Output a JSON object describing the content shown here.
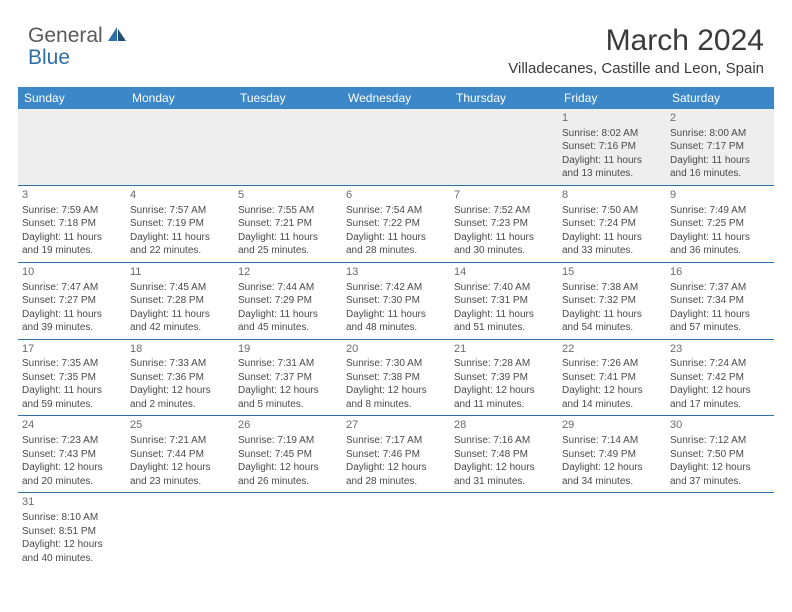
{
  "logo": {
    "text1": "General",
    "text2": "Blue"
  },
  "title": "March 2024",
  "location": "Villadecanes, Castille and Leon, Spain",
  "colors": {
    "header_bg": "#3b87c8",
    "header_text": "#ffffff",
    "rule": "#2f6fa8",
    "first_row_bg": "#eeeeee",
    "body_text": "#4a4a4a",
    "logo_gray": "#5a5a5a",
    "logo_blue": "#2f6fa8"
  },
  "weekdays": [
    "Sunday",
    "Monday",
    "Tuesday",
    "Wednesday",
    "Thursday",
    "Friday",
    "Saturday"
  ],
  "weeks": [
    [
      null,
      null,
      null,
      null,
      null,
      {
        "n": "1",
        "sr": "Sunrise: 8:02 AM",
        "ss": "Sunset: 7:16 PM",
        "dl1": "Daylight: 11 hours",
        "dl2": "and 13 minutes."
      },
      {
        "n": "2",
        "sr": "Sunrise: 8:00 AM",
        "ss": "Sunset: 7:17 PM",
        "dl1": "Daylight: 11 hours",
        "dl2": "and 16 minutes."
      }
    ],
    [
      {
        "n": "3",
        "sr": "Sunrise: 7:59 AM",
        "ss": "Sunset: 7:18 PM",
        "dl1": "Daylight: 11 hours",
        "dl2": "and 19 minutes."
      },
      {
        "n": "4",
        "sr": "Sunrise: 7:57 AM",
        "ss": "Sunset: 7:19 PM",
        "dl1": "Daylight: 11 hours",
        "dl2": "and 22 minutes."
      },
      {
        "n": "5",
        "sr": "Sunrise: 7:55 AM",
        "ss": "Sunset: 7:21 PM",
        "dl1": "Daylight: 11 hours",
        "dl2": "and 25 minutes."
      },
      {
        "n": "6",
        "sr": "Sunrise: 7:54 AM",
        "ss": "Sunset: 7:22 PM",
        "dl1": "Daylight: 11 hours",
        "dl2": "and 28 minutes."
      },
      {
        "n": "7",
        "sr": "Sunrise: 7:52 AM",
        "ss": "Sunset: 7:23 PM",
        "dl1": "Daylight: 11 hours",
        "dl2": "and 30 minutes."
      },
      {
        "n": "8",
        "sr": "Sunrise: 7:50 AM",
        "ss": "Sunset: 7:24 PM",
        "dl1": "Daylight: 11 hours",
        "dl2": "and 33 minutes."
      },
      {
        "n": "9",
        "sr": "Sunrise: 7:49 AM",
        "ss": "Sunset: 7:25 PM",
        "dl1": "Daylight: 11 hours",
        "dl2": "and 36 minutes."
      }
    ],
    [
      {
        "n": "10",
        "sr": "Sunrise: 7:47 AM",
        "ss": "Sunset: 7:27 PM",
        "dl1": "Daylight: 11 hours",
        "dl2": "and 39 minutes."
      },
      {
        "n": "11",
        "sr": "Sunrise: 7:45 AM",
        "ss": "Sunset: 7:28 PM",
        "dl1": "Daylight: 11 hours",
        "dl2": "and 42 minutes."
      },
      {
        "n": "12",
        "sr": "Sunrise: 7:44 AM",
        "ss": "Sunset: 7:29 PM",
        "dl1": "Daylight: 11 hours",
        "dl2": "and 45 minutes."
      },
      {
        "n": "13",
        "sr": "Sunrise: 7:42 AM",
        "ss": "Sunset: 7:30 PM",
        "dl1": "Daylight: 11 hours",
        "dl2": "and 48 minutes."
      },
      {
        "n": "14",
        "sr": "Sunrise: 7:40 AM",
        "ss": "Sunset: 7:31 PM",
        "dl1": "Daylight: 11 hours",
        "dl2": "and 51 minutes."
      },
      {
        "n": "15",
        "sr": "Sunrise: 7:38 AM",
        "ss": "Sunset: 7:32 PM",
        "dl1": "Daylight: 11 hours",
        "dl2": "and 54 minutes."
      },
      {
        "n": "16",
        "sr": "Sunrise: 7:37 AM",
        "ss": "Sunset: 7:34 PM",
        "dl1": "Daylight: 11 hours",
        "dl2": "and 57 minutes."
      }
    ],
    [
      {
        "n": "17",
        "sr": "Sunrise: 7:35 AM",
        "ss": "Sunset: 7:35 PM",
        "dl1": "Daylight: 11 hours",
        "dl2": "and 59 minutes."
      },
      {
        "n": "18",
        "sr": "Sunrise: 7:33 AM",
        "ss": "Sunset: 7:36 PM",
        "dl1": "Daylight: 12 hours",
        "dl2": "and 2 minutes."
      },
      {
        "n": "19",
        "sr": "Sunrise: 7:31 AM",
        "ss": "Sunset: 7:37 PM",
        "dl1": "Daylight: 12 hours",
        "dl2": "and 5 minutes."
      },
      {
        "n": "20",
        "sr": "Sunrise: 7:30 AM",
        "ss": "Sunset: 7:38 PM",
        "dl1": "Daylight: 12 hours",
        "dl2": "and 8 minutes."
      },
      {
        "n": "21",
        "sr": "Sunrise: 7:28 AM",
        "ss": "Sunset: 7:39 PM",
        "dl1": "Daylight: 12 hours",
        "dl2": "and 11 minutes."
      },
      {
        "n": "22",
        "sr": "Sunrise: 7:26 AM",
        "ss": "Sunset: 7:41 PM",
        "dl1": "Daylight: 12 hours",
        "dl2": "and 14 minutes."
      },
      {
        "n": "23",
        "sr": "Sunrise: 7:24 AM",
        "ss": "Sunset: 7:42 PM",
        "dl1": "Daylight: 12 hours",
        "dl2": "and 17 minutes."
      }
    ],
    [
      {
        "n": "24",
        "sr": "Sunrise: 7:23 AM",
        "ss": "Sunset: 7:43 PM",
        "dl1": "Daylight: 12 hours",
        "dl2": "and 20 minutes."
      },
      {
        "n": "25",
        "sr": "Sunrise: 7:21 AM",
        "ss": "Sunset: 7:44 PM",
        "dl1": "Daylight: 12 hours",
        "dl2": "and 23 minutes."
      },
      {
        "n": "26",
        "sr": "Sunrise: 7:19 AM",
        "ss": "Sunset: 7:45 PM",
        "dl1": "Daylight: 12 hours",
        "dl2": "and 26 minutes."
      },
      {
        "n": "27",
        "sr": "Sunrise: 7:17 AM",
        "ss": "Sunset: 7:46 PM",
        "dl1": "Daylight: 12 hours",
        "dl2": "and 28 minutes."
      },
      {
        "n": "28",
        "sr": "Sunrise: 7:16 AM",
        "ss": "Sunset: 7:48 PM",
        "dl1": "Daylight: 12 hours",
        "dl2": "and 31 minutes."
      },
      {
        "n": "29",
        "sr": "Sunrise: 7:14 AM",
        "ss": "Sunset: 7:49 PM",
        "dl1": "Daylight: 12 hours",
        "dl2": "and 34 minutes."
      },
      {
        "n": "30",
        "sr": "Sunrise: 7:12 AM",
        "ss": "Sunset: 7:50 PM",
        "dl1": "Daylight: 12 hours",
        "dl2": "and 37 minutes."
      }
    ],
    [
      {
        "n": "31",
        "sr": "Sunrise: 8:10 AM",
        "ss": "Sunset: 8:51 PM",
        "dl1": "Daylight: 12 hours",
        "dl2": "and 40 minutes."
      },
      null,
      null,
      null,
      null,
      null,
      null
    ]
  ]
}
